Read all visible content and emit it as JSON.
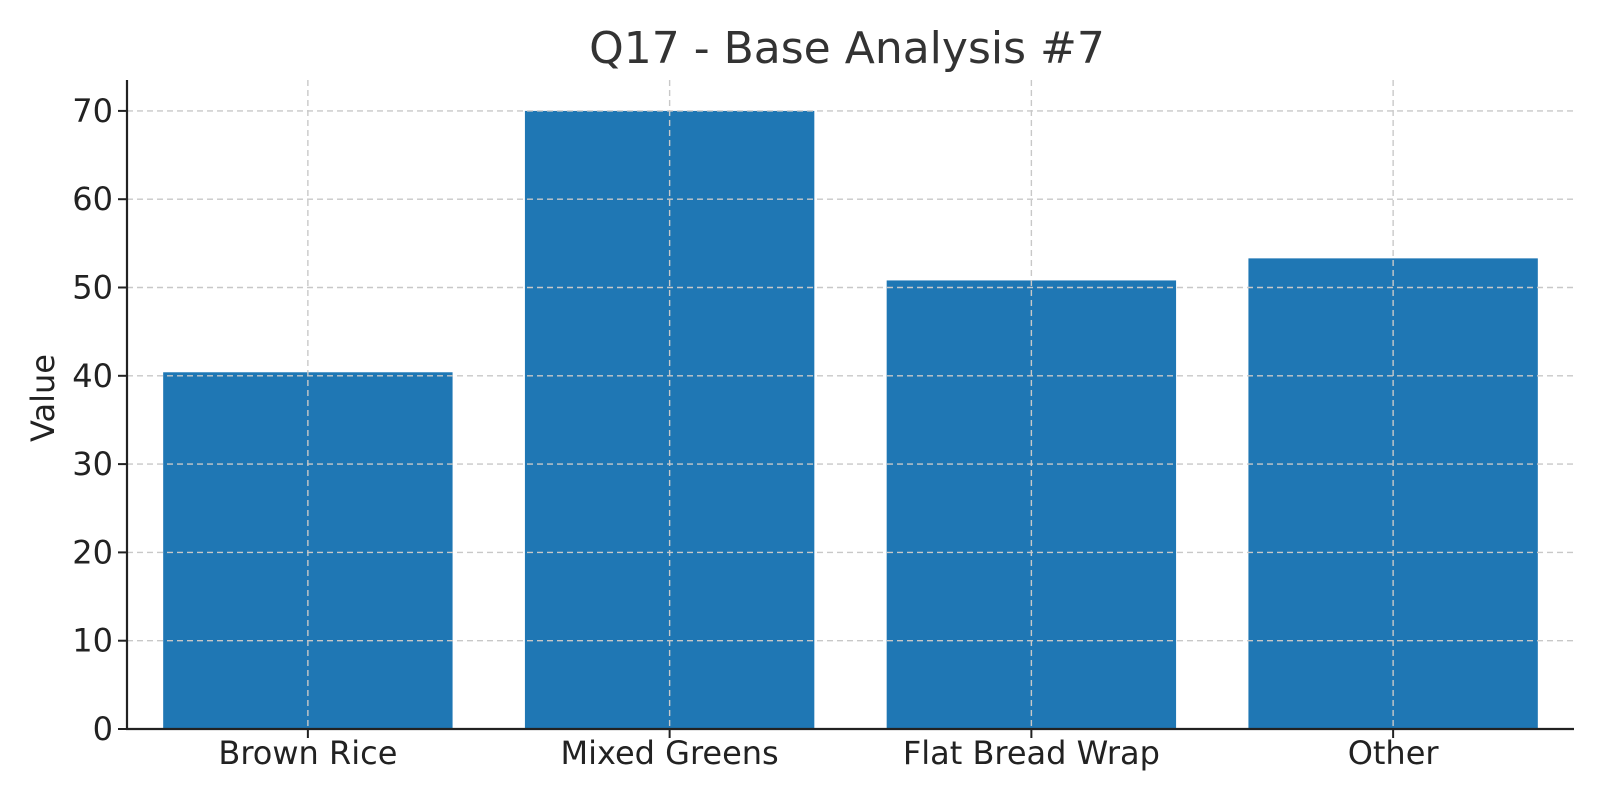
{
  "chart_data": {
    "type": "bar",
    "title": "Q17 - Base Analysis #7",
    "xlabel": "",
    "ylabel": "Value",
    "categories": [
      "Brown Rice",
      "Mixed Greens",
      "Flat Bread Wrap",
      "Other"
    ],
    "values": [
      40.4,
      70.0,
      50.8,
      53.3
    ],
    "ylim": [
      0,
      73.5
    ],
    "yticks": [
      0,
      10,
      20,
      30,
      40,
      50,
      60,
      70
    ],
    "grid": true,
    "colors": {
      "bar": "#1f77b4"
    }
  }
}
